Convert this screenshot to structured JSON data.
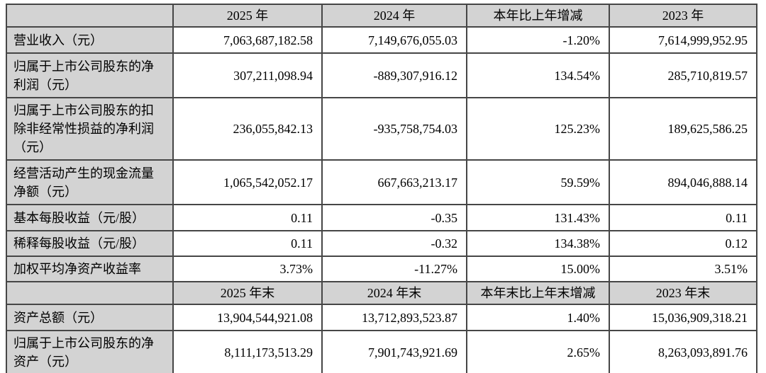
{
  "colors": {
    "header_background": "#d3d3d3",
    "label_background": "#d3d3d3",
    "cell_background": "#ffffff",
    "border": "#464646",
    "text": "#000000"
  },
  "table": {
    "sections": [
      {
        "headers": [
          "2025 年",
          "2024 年",
          "本年比上年增减",
          "2023 年"
        ],
        "rows": [
          {
            "label": "营业收入（元）",
            "values": [
              "7,063,687,182.58",
              "7,149,676,055.03",
              "-1.20%",
              "7,614,999,952.95"
            ]
          },
          {
            "label": "归属于上市公司股东的净利润（元）",
            "values": [
              "307,211,098.94",
              "-889,307,916.12",
              "134.54%",
              "285,710,819.57"
            ]
          },
          {
            "label": "归属于上市公司股东的扣除非经常性损益的净利润（元）",
            "values": [
              "236,055,842.13",
              "-935,758,754.03",
              "125.23%",
              "189,625,586.25"
            ]
          },
          {
            "label": "经营活动产生的现金流量净额（元）",
            "values": [
              "1,065,542,052.17",
              "667,663,213.17",
              "59.59%",
              "894,046,888.14"
            ]
          },
          {
            "label": "基本每股收益（元/股）",
            "values": [
              "0.11",
              "-0.35",
              "131.43%",
              "0.11"
            ]
          },
          {
            "label": "稀释每股收益（元/股）",
            "values": [
              "0.11",
              "-0.32",
              "134.38%",
              "0.12"
            ]
          },
          {
            "label": "加权平均净资产收益率",
            "values": [
              "3.73%",
              "-11.27%",
              "15.00%",
              "3.51%"
            ]
          }
        ]
      },
      {
        "headers": [
          "2025 年末",
          "2024 年末",
          "本年末比上年末增减",
          "2023 年末"
        ],
        "rows": [
          {
            "label": "资产总额（元）",
            "values": [
              "13,904,544,921.08",
              "13,712,893,523.87",
              "1.40%",
              "15,036,909,318.21"
            ]
          },
          {
            "label": "归属于上市公司股东的净资产（元）",
            "values": [
              "8,111,173,513.29",
              "7,901,743,921.69",
              "2.65%",
              "8,263,093,891.76"
            ]
          }
        ]
      }
    ]
  }
}
